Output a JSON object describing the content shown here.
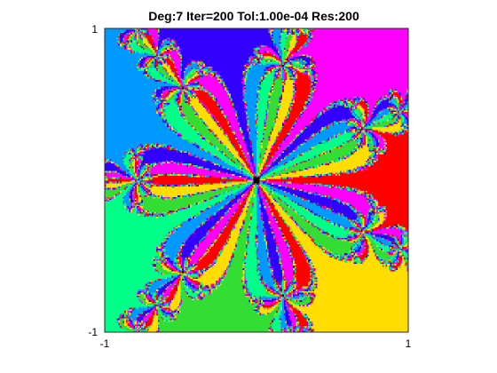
{
  "chart_data": {
    "type": "heatmap",
    "title": "Deg:7 Iter=200 Tol:1.00e-04 Res:200",
    "xlabel": "",
    "ylabel": "",
    "xlim": [
      -1,
      1
    ],
    "ylim": [
      -1,
      1
    ],
    "x_ticks": [
      "-1",
      "1"
    ],
    "y_ticks": [
      "-1",
      "1"
    ],
    "grid": false,
    "legend": "none",
    "description_values": {
      "degree": 7,
      "iterations": 200,
      "tolerance": 0.0001,
      "resolution": 200
    },
    "colors": [
      "#ff0000",
      "#ff00ff",
      "#3300ff",
      "#0099ff",
      "#00ff88",
      "#33dd33",
      "#ffdd00"
    ]
  }
}
